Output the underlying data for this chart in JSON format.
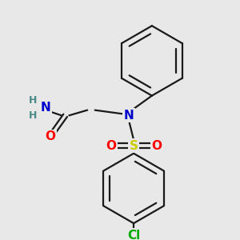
{
  "bg_color": "#e8e8e8",
  "atom_colors": {
    "N": "#0000cc",
    "O": "#ff0000",
    "S": "#cccc00",
    "Cl": "#00aa00",
    "C": "#000000",
    "H": "#4a8a8a"
  },
  "bond_color": "#1a1a1a",
  "bond_width": 1.6,
  "font_size_atom": 10,
  "font_size_small": 9
}
